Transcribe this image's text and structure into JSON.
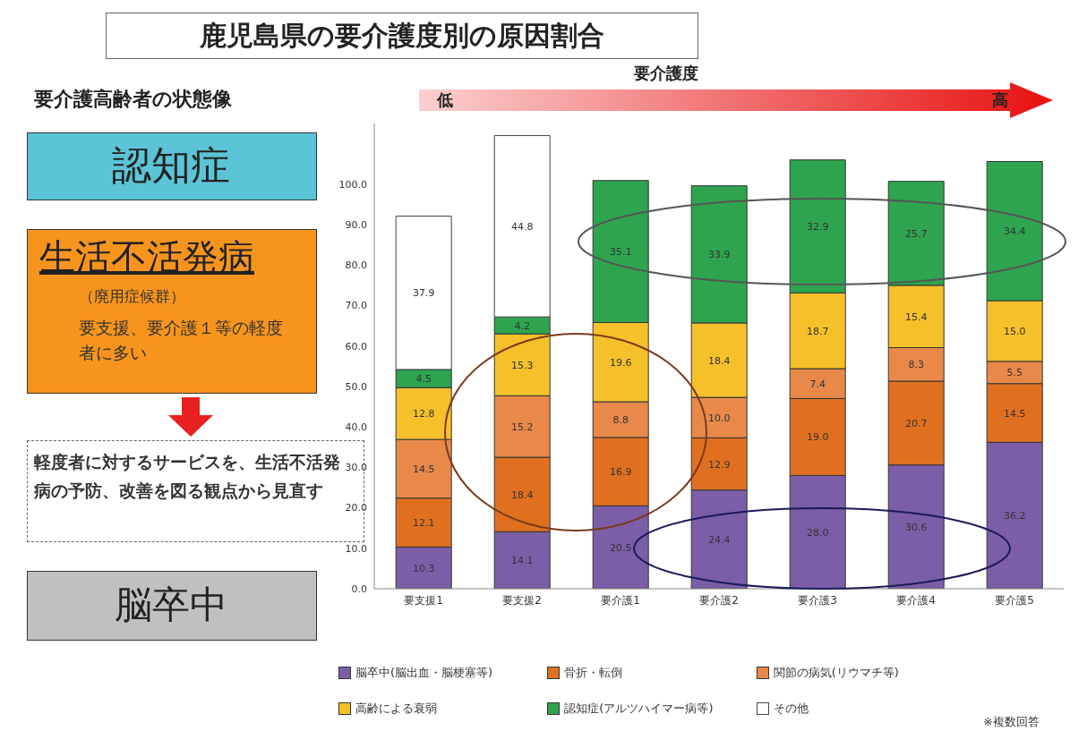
{
  "chart_data": {
    "type": "bar",
    "stacked": true,
    "title": "鹿児島県の要介護度別の原因割合",
    "categories": [
      "要支援1",
      "要支援2",
      "要介護1",
      "要介護2",
      "要介護3",
      "要介護4",
      "要介護5"
    ],
    "series": [
      {
        "name": "脳卒中(脳出血・脳梗塞等)",
        "color": "#7b5ea7",
        "values": [
          10.3,
          14.1,
          20.5,
          24.4,
          28.0,
          30.6,
          36.2
        ],
        "value_labels": [
          "10.3",
          "14.1",
          "20.5",
          "24.4",
          "28.0",
          "30.6",
          "36.2"
        ]
      },
      {
        "name": "骨折・転倒",
        "color": "#e07020",
        "values": [
          12.1,
          18.4,
          16.9,
          12.9,
          19.0,
          20.7,
          14.5
        ],
        "value_labels": [
          "12.1",
          "18.4",
          "16.9",
          "12.9",
          "19.0",
          "20.7",
          "14.5"
        ]
      },
      {
        "name": "関節の病気(リウマチ等)",
        "color": "#e8894a",
        "values": [
          14.5,
          15.2,
          8.8,
          10.0,
          7.4,
          8.3,
          5.5
        ],
        "value_labels": [
          "14.5",
          "15.2",
          "8.8",
          "10.0",
          "7.4",
          "8.3",
          "5.5"
        ]
      },
      {
        "name": "高齢による衰弱",
        "color": "#f5c02a",
        "values": [
          12.8,
          15.3,
          19.6,
          18.4,
          18.7,
          15.4,
          15.0
        ],
        "value_labels": [
          "12.8",
          "15.3",
          "19.6",
          "18.4",
          "18.7",
          "15.4",
          "15.0"
        ]
      },
      {
        "name": "認知症(アルツハイマー病等)",
        "color": "#2ea44f",
        "values": [
          4.5,
          4.2,
          35.1,
          33.9,
          32.9,
          25.7,
          34.4
        ],
        "value_labels": [
          "4.5",
          "4.2",
          "35.1",
          "33.9",
          "32.9",
          "25.7",
          "34.4"
        ]
      },
      {
        "name": "その他",
        "color": "#ffffff",
        "values": [
          37.9,
          44.8,
          null,
          null,
          null,
          null,
          null
        ],
        "value_labels": [
          "37.9",
          "44.8",
          null,
          null,
          null,
          null,
          null
        ]
      }
    ],
    "ylim": [
      0,
      115
    ],
    "yticks": [
      {
        "value": 0,
        "label": "0.0"
      },
      {
        "value": 10,
        "label": "10.0"
      },
      {
        "value": 20,
        "label": "20.0"
      },
      {
        "value": 30,
        "label": "30.0"
      },
      {
        "value": 40,
        "label": "40.0"
      },
      {
        "value": 50,
        "label": "50.0"
      },
      {
        "value": 60,
        "label": "60.0"
      },
      {
        "value": 70,
        "label": "70.0"
      },
      {
        "value": 80,
        "label": "80.0"
      },
      {
        "value": 90,
        "label": "90.0"
      },
      {
        "value": 100,
        "label": "100.0"
      }
    ],
    "grid": false,
    "legend": "bottom",
    "annotations": [
      "要介護高齢者の状態像",
      "要介護度",
      "低",
      "高",
      "認知症",
      "生活不活発病",
      "（廃用症候群）",
      "要支援、要介護１等の軽度者に多い",
      "軽度者に対するサービスを、生活不活発病の予防、改善を図る観点から見直す",
      "脳卒中",
      "※複数回答"
    ]
  }
}
